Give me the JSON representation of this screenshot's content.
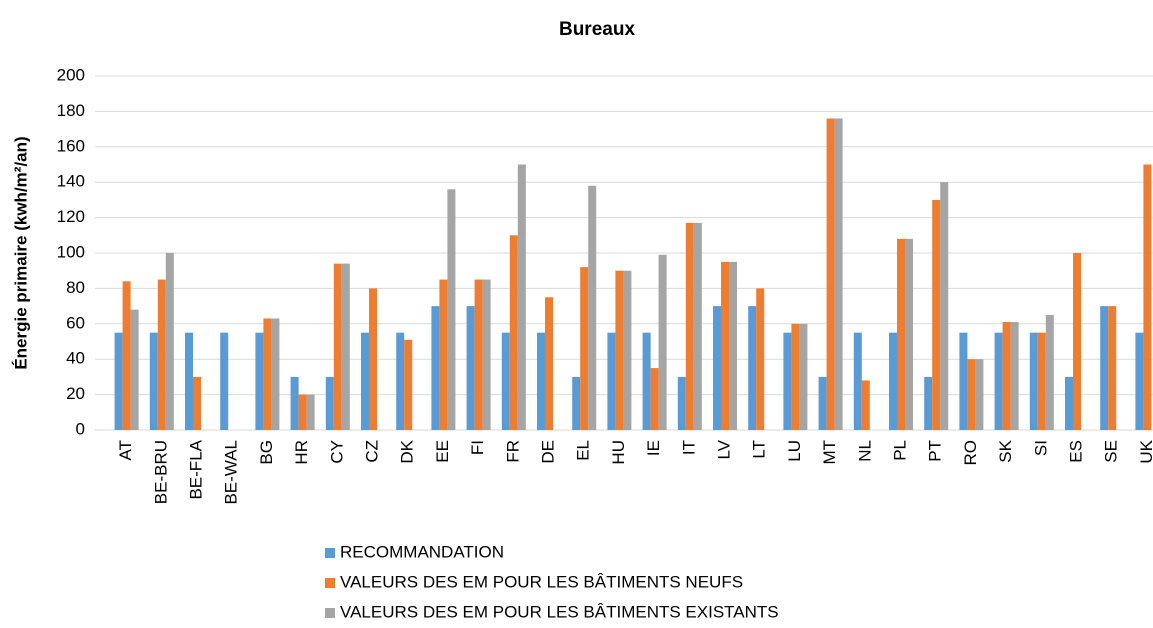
{
  "chart_data": {
    "type": "bar",
    "title": "Bureaux",
    "y_label": "Énergie primaire (kwh/m²/an)",
    "categories": [
      "AT",
      "BE-BRU",
      "BE-FLA",
      "BE-WAL",
      "BG",
      "HR",
      "CY",
      "CZ",
      "DK",
      "EE",
      "FI",
      "FR",
      "DE",
      "EL",
      "HU",
      "IE",
      "IT",
      "LV",
      "LT",
      "LU",
      "MT",
      "NL",
      "PL",
      "PT",
      "RO",
      "SK",
      "SI",
      "ES",
      "SE",
      "UK"
    ],
    "series": [
      {
        "name": "RECOMMANDATION",
        "color": "#5b9bd5",
        "values": [
          55,
          55,
          55,
          55,
          55,
          30,
          30,
          55,
          55,
          70,
          70,
          55,
          55,
          30,
          55,
          55,
          30,
          70,
          70,
          55,
          30,
          55,
          55,
          30,
          55,
          55,
          55,
          30,
          70,
          55
        ]
      },
      {
        "name": "VALEURS DES EM POUR LES BÂTIMENTS NEUFS",
        "color": "#ed7d31",
        "values": [
          84,
          85,
          30,
          null,
          63,
          20,
          94,
          80,
          51,
          85,
          85,
          110,
          75,
          92,
          90,
          35,
          117,
          95,
          80,
          60,
          176,
          28,
          108,
          130,
          40,
          61,
          55,
          100,
          70,
          150
        ]
      },
      {
        "name": "VALEURS DES EM POUR LES BÂTIMENTS EXISTANTS",
        "color": "#a5a5a5",
        "values": [
          68,
          100,
          null,
          null,
          63,
          20,
          94,
          null,
          null,
          136,
          85,
          150,
          null,
          138,
          90,
          99,
          117,
          95,
          null,
          60,
          176,
          null,
          108,
          140,
          40,
          61,
          65,
          null,
          null,
          null
        ]
      }
    ],
    "ylim": [
      0,
      200
    ],
    "yticks": [
      0,
      20,
      40,
      60,
      80,
      100,
      120,
      140,
      160,
      180,
      200
    ],
    "grid": true
  }
}
